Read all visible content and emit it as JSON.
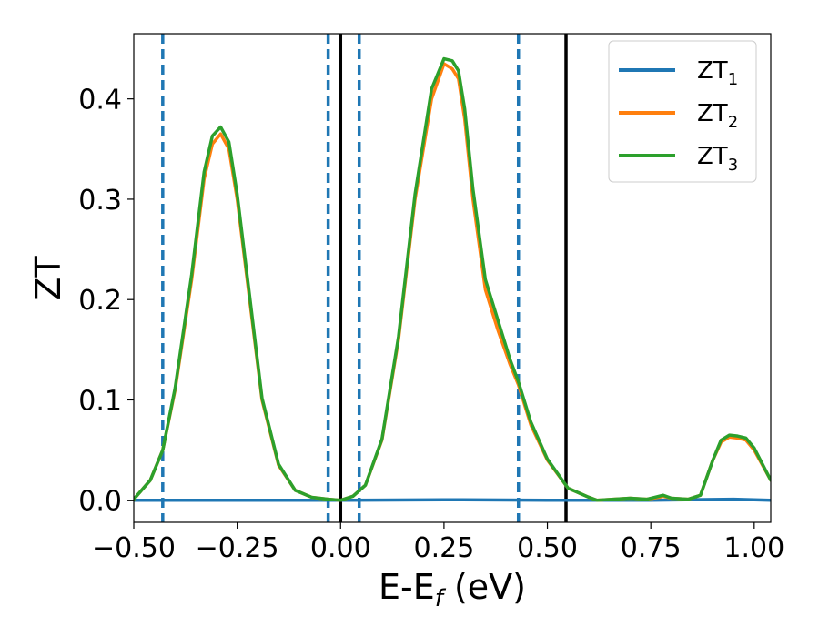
{
  "chart_data": {
    "type": "line",
    "xlabel_main": "E-E",
    "xlabel_sub": "f",
    "xlabel_unit": " (eV)",
    "ylabel": "ZT",
    "xlim": [
      -0.5,
      1.04
    ],
    "ylim": [
      -0.022,
      0.465
    ],
    "xticks": [
      -0.5,
      -0.25,
      0.0,
      0.25,
      0.5,
      0.75,
      1.0
    ],
    "xtick_labels": [
      "−0.50",
      "−0.25",
      "0.00",
      "0.25",
      "0.50",
      "0.75",
      "1.00"
    ],
    "yticks": [
      0.0,
      0.1,
      0.2,
      0.3,
      0.4
    ],
    "ytick_labels": [
      "0.0",
      "0.1",
      "0.2",
      "0.3",
      "0.4"
    ],
    "grid": false,
    "legend_position": "top-right",
    "vlines_dashed": {
      "color": "#1f77b4",
      "x": [
        -0.43,
        -0.03,
        0.045,
        0.43
      ]
    },
    "vlines_solid": {
      "color": "#000000",
      "x": [
        0.0,
        0.545
      ]
    },
    "series": [
      {
        "name": "ZT",
        "name_sub": "1",
        "color": "#1f77b4",
        "x": [
          -0.5,
          -0.25,
          0.0,
          0.25,
          0.5,
          0.75,
          0.95,
          1.04
        ],
        "y": [
          0.0,
          0.0,
          0.0,
          0.0005,
          0.0,
          0.0,
          0.001,
          0.0
        ]
      },
      {
        "name": "ZT",
        "name_sub": "2",
        "color": "#ff7f0e",
        "x": [
          -0.5,
          -0.46,
          -0.43,
          -0.4,
          -0.36,
          -0.33,
          -0.31,
          -0.29,
          -0.27,
          -0.25,
          -0.22,
          -0.19,
          -0.15,
          -0.11,
          -0.07,
          -0.03,
          0.0,
          0.03,
          0.06,
          0.1,
          0.14,
          0.18,
          0.22,
          0.25,
          0.27,
          0.285,
          0.3,
          0.32,
          0.35,
          0.38,
          0.41,
          0.43,
          0.46,
          0.5,
          0.55,
          0.6,
          0.62,
          0.66,
          0.7,
          0.74,
          0.77,
          0.78,
          0.8,
          0.84,
          0.87,
          0.9,
          0.92,
          0.94,
          0.96,
          0.98,
          1.0,
          1.04
        ],
        "y": [
          0.001,
          0.02,
          0.05,
          0.11,
          0.22,
          0.32,
          0.355,
          0.365,
          0.35,
          0.3,
          0.2,
          0.1,
          0.035,
          0.01,
          0.003,
          0.001,
          0.0,
          0.004,
          0.015,
          0.06,
          0.16,
          0.3,
          0.4,
          0.435,
          0.43,
          0.42,
          0.38,
          0.3,
          0.21,
          0.17,
          0.135,
          0.115,
          0.075,
          0.04,
          0.012,
          0.003,
          0.0,
          0.001,
          0.002,
          0.001,
          0.003,
          0.004,
          0.002,
          0.001,
          0.005,
          0.04,
          0.058,
          0.063,
          0.062,
          0.06,
          0.05,
          0.02
        ]
      },
      {
        "name": "ZT",
        "name_sub": "3",
        "color": "#2ca02c",
        "x": [
          -0.5,
          -0.46,
          -0.43,
          -0.4,
          -0.36,
          -0.33,
          -0.31,
          -0.29,
          -0.27,
          -0.25,
          -0.22,
          -0.19,
          -0.15,
          -0.11,
          -0.07,
          -0.03,
          0.0,
          0.03,
          0.06,
          0.1,
          0.14,
          0.18,
          0.22,
          0.25,
          0.27,
          0.285,
          0.3,
          0.32,
          0.35,
          0.38,
          0.41,
          0.43,
          0.46,
          0.5,
          0.55,
          0.6,
          0.62,
          0.66,
          0.7,
          0.74,
          0.77,
          0.78,
          0.8,
          0.84,
          0.87,
          0.9,
          0.92,
          0.94,
          0.96,
          0.98,
          1.0,
          1.04
        ],
        "y": [
          0.001,
          0.02,
          0.05,
          0.112,
          0.225,
          0.327,
          0.363,
          0.372,
          0.357,
          0.305,
          0.204,
          0.102,
          0.036,
          0.01,
          0.003,
          0.001,
          0.0,
          0.004,
          0.015,
          0.061,
          0.163,
          0.305,
          0.41,
          0.44,
          0.438,
          0.428,
          0.39,
          0.31,
          0.22,
          0.18,
          0.14,
          0.118,
          0.078,
          0.041,
          0.012,
          0.003,
          0.0,
          0.001,
          0.002,
          0.001,
          0.004,
          0.005,
          0.002,
          0.001,
          0.005,
          0.04,
          0.06,
          0.065,
          0.064,
          0.062,
          0.052,
          0.02
        ]
      }
    ]
  }
}
